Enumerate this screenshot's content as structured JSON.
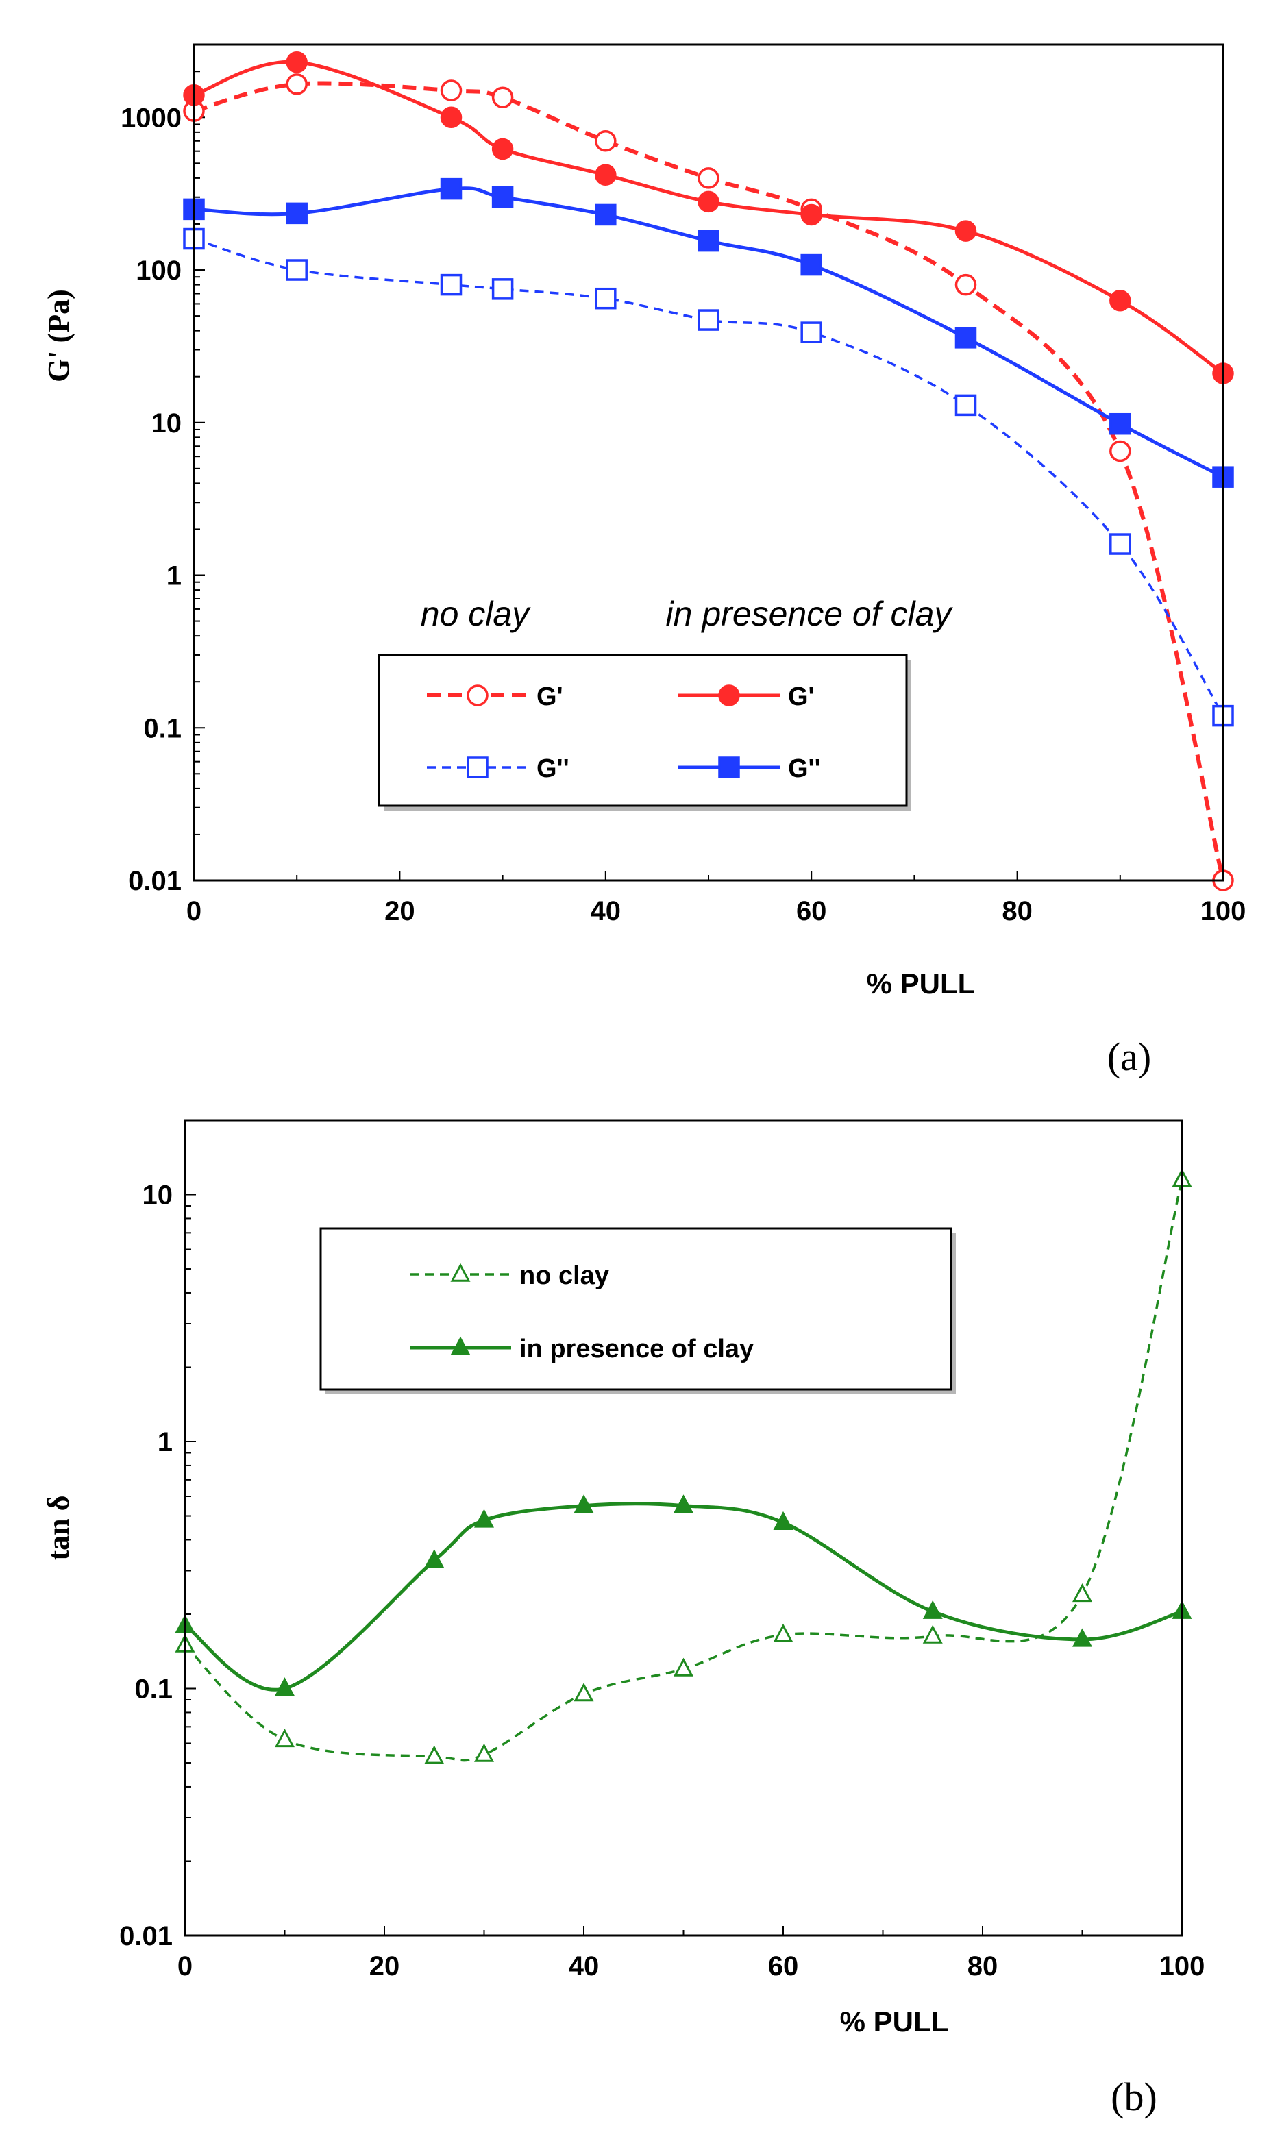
{
  "chart_data": [
    {
      "type": "line",
      "panel_label": "(a)",
      "xlabel": "% PULL",
      "ylabel": "G' (Pa)",
      "yscale": "log",
      "xlim": [
        0,
        100
      ],
      "ylim": [
        0.01,
        3000
      ],
      "x_ticks": [
        "0",
        "20",
        "40",
        "60",
        "80",
        "100"
      ],
      "y_ticks": [
        "0.01",
        "0.1",
        "1",
        "10",
        "100",
        "1000"
      ],
      "legend_headers": [
        "no clay",
        "in presence of clay"
      ],
      "series": [
        {
          "name": "G'",
          "group": "no clay",
          "color": "#ff2a2a",
          "dash": "dashed",
          "marker": "open-circle",
          "x": [
            0,
            10,
            25,
            30,
            40,
            50,
            60,
            75,
            90,
            100
          ],
          "values": [
            1100,
            1650,
            1500,
            1350,
            700,
            400,
            250,
            80,
            6.5,
            0.01
          ]
        },
        {
          "name": "G'",
          "group": "in presence of clay",
          "color": "#ff2a2a",
          "dash": "solid",
          "marker": "filled-circle",
          "x": [
            0,
            10,
            25,
            30,
            40,
            50,
            60,
            75,
            90,
            100
          ],
          "values": [
            1400,
            2300,
            1000,
            620,
            420,
            280,
            230,
            180,
            63,
            21
          ]
        },
        {
          "name": "G''",
          "group": "no clay",
          "color": "#1f3cff",
          "dash": "dashed",
          "marker": "open-square",
          "x": [
            0,
            10,
            25,
            30,
            40,
            50,
            60,
            75,
            90,
            100
          ],
          "values": [
            160,
            100,
            80,
            75,
            65,
            47,
            39,
            13,
            1.6,
            0.12
          ]
        },
        {
          "name": "G''",
          "group": "in presence of clay",
          "color": "#1f3cff",
          "dash": "solid",
          "marker": "filled-square",
          "x": [
            0,
            10,
            25,
            30,
            40,
            50,
            60,
            75,
            90,
            100
          ],
          "values": [
            250,
            235,
            340,
            300,
            230,
            155,
            108,
            36,
            9.8,
            4.4
          ]
        }
      ]
    },
    {
      "type": "line",
      "panel_label": "(b)",
      "xlabel": "% PULL",
      "ylabel": "tan δ",
      "yscale": "log",
      "xlim": [
        0,
        100
      ],
      "ylim": [
        0.01,
        20
      ],
      "x_ticks": [
        "0",
        "20",
        "40",
        "60",
        "80",
        "100"
      ],
      "y_ticks": [
        "0.01",
        "0.1",
        "1",
        "10"
      ],
      "series": [
        {
          "name": "no clay",
          "color": "#1f8a1f",
          "dash": "dashed",
          "marker": "open-triangle",
          "x": [
            0,
            10,
            25,
            30,
            40,
            50,
            60,
            75,
            90,
            100
          ],
          "values": [
            0.15,
            0.062,
            0.053,
            0.054,
            0.095,
            0.12,
            0.165,
            0.163,
            0.24,
            11.5
          ]
        },
        {
          "name": "in presence of clay",
          "color": "#1f8a1f",
          "dash": "solid",
          "marker": "filled-triangle",
          "x": [
            0,
            10,
            25,
            30,
            40,
            50,
            60,
            75,
            90,
            100
          ],
          "values": [
            0.18,
            0.1,
            0.33,
            0.48,
            0.55,
            0.55,
            0.47,
            0.205,
            0.158,
            0.205
          ]
        }
      ]
    }
  ]
}
